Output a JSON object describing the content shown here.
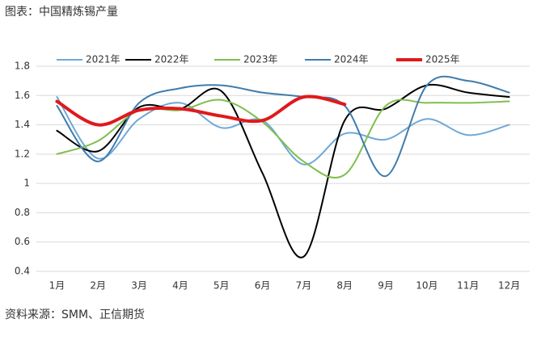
{
  "chart_data": {
    "type": "line",
    "title": "图表：中国精炼锡产量",
    "source": "资料来源：SMM、正信期货",
    "categories": [
      "1月",
      "2月",
      "3月",
      "4月",
      "5月",
      "6月",
      "7月",
      "8月",
      "9月",
      "10月",
      "11月",
      "12月"
    ],
    "series": [
      {
        "name": "2021年",
        "color": "#6fa8d6",
        "values": [
          1.59,
          1.17,
          1.44,
          1.55,
          1.38,
          1.43,
          1.13,
          1.34,
          1.3,
          1.44,
          1.33,
          1.4
        ]
      },
      {
        "name": "2022年",
        "color": "#000000",
        "values": [
          1.36,
          1.22,
          1.52,
          1.51,
          1.63,
          1.07,
          0.5,
          1.43,
          1.51,
          1.67,
          1.62,
          1.59
        ]
      },
      {
        "name": "2023年",
        "color": "#7fbf4d",
        "values": [
          1.2,
          1.29,
          1.5,
          1.5,
          1.57,
          1.42,
          1.15,
          1.06,
          1.53,
          1.55,
          1.55,
          1.56
        ]
      },
      {
        "name": "2024年",
        "color": "#3f7cac",
        "values": [
          1.53,
          1.15,
          1.55,
          1.65,
          1.67,
          1.62,
          1.59,
          1.53,
          1.05,
          1.67,
          1.7,
          1.62
        ]
      },
      {
        "name": "2025年",
        "color": "#e0191c",
        "values": [
          1.56,
          1.4,
          1.5,
          1.51,
          1.46,
          1.43,
          1.59,
          1.54,
          null,
          null,
          null,
          null
        ]
      }
    ],
    "ylim": [
      0.4,
      1.8
    ],
    "yticks": [
      0.4,
      0.6,
      0.8,
      1,
      1.2,
      1.4,
      1.6,
      1.8
    ],
    "grid": true
  }
}
